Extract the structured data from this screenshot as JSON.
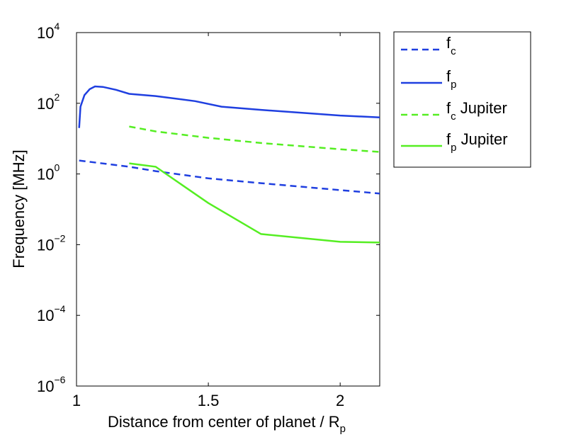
{
  "chart_data": {
    "type": "line",
    "xlabel": "Distance from center of planet / R",
    "xlabel_subscript": "p",
    "ylabel": "Frequency [MHz]",
    "xlim": [
      1,
      2.15
    ],
    "ylim": [
      1e-06,
      10000.0
    ],
    "yscale": "log",
    "xticks": [
      {
        "value": 1,
        "label": "1"
      },
      {
        "value": 1.5,
        "label": "1.5"
      },
      {
        "value": 2,
        "label": "2"
      }
    ],
    "yticks": [
      {
        "value": 1e-06,
        "base": "10",
        "exp": "−6"
      },
      {
        "value": 0.0001,
        "base": "10",
        "exp": "−4"
      },
      {
        "value": 0.01,
        "base": "10",
        "exp": "−2"
      },
      {
        "value": 1,
        "base": "10",
        "exp": "0"
      },
      {
        "value": 100,
        "base": "10",
        "exp": "2"
      },
      {
        "value": 10000,
        "base": "10",
        "exp": "4"
      }
    ],
    "legend_position": "outside-right-top",
    "series": [
      {
        "name": "f",
        "name_sub": "c",
        "name_suffix": "",
        "color": "#1f3fe0",
        "dash": "dashed",
        "x": [
          1.01,
          1.2,
          1.3,
          1.5,
          1.7,
          2.0,
          2.15
        ],
        "y": [
          2.4,
          1.6,
          1.2,
          0.75,
          0.55,
          0.35,
          0.28
        ]
      },
      {
        "name": "f",
        "name_sub": "p",
        "name_suffix": "",
        "color": "#1f3fe0",
        "dash": "solid",
        "x": [
          1.01,
          1.015,
          1.03,
          1.05,
          1.07,
          1.1,
          1.15,
          1.2,
          1.3,
          1.45,
          1.55,
          1.7,
          2.0,
          2.15
        ],
        "y": [
          20,
          80,
          170,
          250,
          300,
          290,
          240,
          185,
          160,
          115,
          80,
          65,
          45,
          40
        ]
      },
      {
        "name": "f",
        "name_sub": "c",
        "name_suffix": " Jupiter",
        "color": "#55ee22",
        "dash": "dashed",
        "x": [
          1.2,
          1.3,
          1.5,
          1.7,
          2.0,
          2.15
        ],
        "y": [
          22,
          16,
          10.5,
          7.5,
          5,
          4.2
        ]
      },
      {
        "name": "f",
        "name_sub": "p",
        "name_suffix": " Jupiter",
        "color": "#55ee22",
        "dash": "solid",
        "x": [
          1.2,
          1.3,
          1.5,
          1.7,
          2.0,
          2.15
        ],
        "y": [
          2.0,
          1.6,
          0.15,
          0.02,
          0.012,
          0.0115
        ]
      }
    ]
  }
}
